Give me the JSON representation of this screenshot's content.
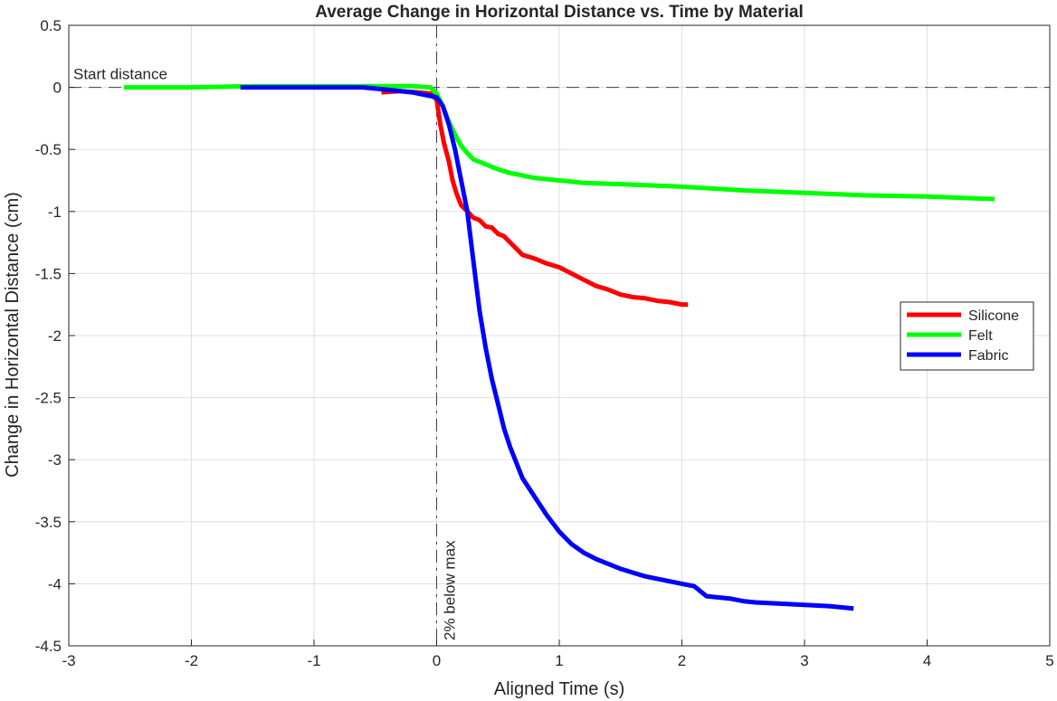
{
  "chart_data": {
    "type": "line",
    "title": "Average Change in Horizontal Distance vs. Time by Material",
    "xlabel": "Aligned Time (s)",
    "ylabel": "Change in Horizontal Distance (cm)",
    "xlim": [
      -3,
      5
    ],
    "ylim": [
      -4.5,
      0.5
    ],
    "xticks": [
      "-3",
      "-2",
      "-1",
      "0",
      "1",
      "2",
      "3",
      "4",
      "5"
    ],
    "yticks": [
      "0.5",
      "0",
      "-0.5",
      "-1",
      "-1.5",
      "-2",
      "-2.5",
      "-3",
      "-3.5",
      "-4",
      "-4.5"
    ],
    "grid": true,
    "legend": {
      "placement": "right"
    },
    "annotations": {
      "hline": {
        "y": 0,
        "label": "Start distance"
      },
      "vline": {
        "x": 0,
        "label": "2% below max"
      }
    },
    "series": [
      {
        "name": "Silicone",
        "color": "#ff0000",
        "x": [
          -0.45,
          -0.3,
          -0.15,
          -0.05,
          0,
          0.03,
          0.06,
          0.1,
          0.13,
          0.16,
          0.2,
          0.25,
          0.3,
          0.35,
          0.4,
          0.45,
          0.5,
          0.55,
          0.6,
          0.65,
          0.7,
          0.8,
          0.9,
          1.0,
          1.1,
          1.2,
          1.3,
          1.4,
          1.5,
          1.6,
          1.7,
          1.8,
          1.9,
          2.0,
          2.05
        ],
        "y": [
          -0.04,
          -0.03,
          -0.04,
          -0.05,
          -0.1,
          -0.3,
          -0.45,
          -0.6,
          -0.75,
          -0.85,
          -0.95,
          -1.0,
          -1.05,
          -1.07,
          -1.12,
          -1.13,
          -1.18,
          -1.2,
          -1.25,
          -1.3,
          -1.35,
          -1.38,
          -1.42,
          -1.45,
          -1.5,
          -1.55,
          -1.6,
          -1.63,
          -1.67,
          -1.69,
          -1.7,
          -1.72,
          -1.73,
          -1.75,
          -1.75
        ]
      },
      {
        "name": "Felt",
        "color": "#00ff00",
        "x": [
          -2.55,
          -2.0,
          -1.5,
          -1.0,
          -0.5,
          -0.2,
          -0.05,
          0.0,
          0.05,
          0.1,
          0.15,
          0.2,
          0.25,
          0.3,
          0.4,
          0.5,
          0.6,
          0.7,
          0.8,
          1.0,
          1.2,
          1.5,
          2.0,
          2.5,
          3.0,
          3.5,
          4.0,
          4.55
        ],
        "y": [
          0.0,
          0.0,
          0.01,
          0.01,
          0.01,
          0.01,
          0.0,
          -0.05,
          -0.15,
          -0.28,
          -0.38,
          -0.47,
          -0.53,
          -0.58,
          -0.62,
          -0.66,
          -0.69,
          -0.71,
          -0.73,
          -0.75,
          -0.77,
          -0.78,
          -0.8,
          -0.83,
          -0.85,
          -0.87,
          -0.88,
          -0.9
        ]
      },
      {
        "name": "Fabric",
        "color": "#0000ff",
        "x": [
          -1.6,
          -1.2,
          -0.8,
          -0.6,
          -0.4,
          -0.2,
          0.0,
          0.05,
          0.1,
          0.15,
          0.2,
          0.25,
          0.3,
          0.35,
          0.4,
          0.45,
          0.5,
          0.55,
          0.6,
          0.7,
          0.8,
          0.9,
          1.0,
          1.1,
          1.2,
          1.3,
          1.4,
          1.5,
          1.6,
          1.7,
          1.8,
          1.9,
          2.0,
          2.1,
          2.2,
          2.3,
          2.4,
          2.5,
          2.6,
          2.8,
          3.0,
          3.2,
          3.4
        ],
        "y": [
          0.0,
          0.0,
          0.0,
          0.0,
          -0.02,
          -0.04,
          -0.08,
          -0.15,
          -0.3,
          -0.5,
          -0.75,
          -1.0,
          -1.4,
          -1.8,
          -2.1,
          -2.35,
          -2.55,
          -2.75,
          -2.9,
          -3.15,
          -3.3,
          -3.45,
          -3.58,
          -3.68,
          -3.75,
          -3.8,
          -3.84,
          -3.88,
          -3.91,
          -3.94,
          -3.96,
          -3.98,
          -4.0,
          -4.02,
          -4.1,
          -4.11,
          -4.12,
          -4.14,
          -4.15,
          -4.16,
          -4.17,
          -4.18,
          -4.2
        ]
      }
    ]
  }
}
